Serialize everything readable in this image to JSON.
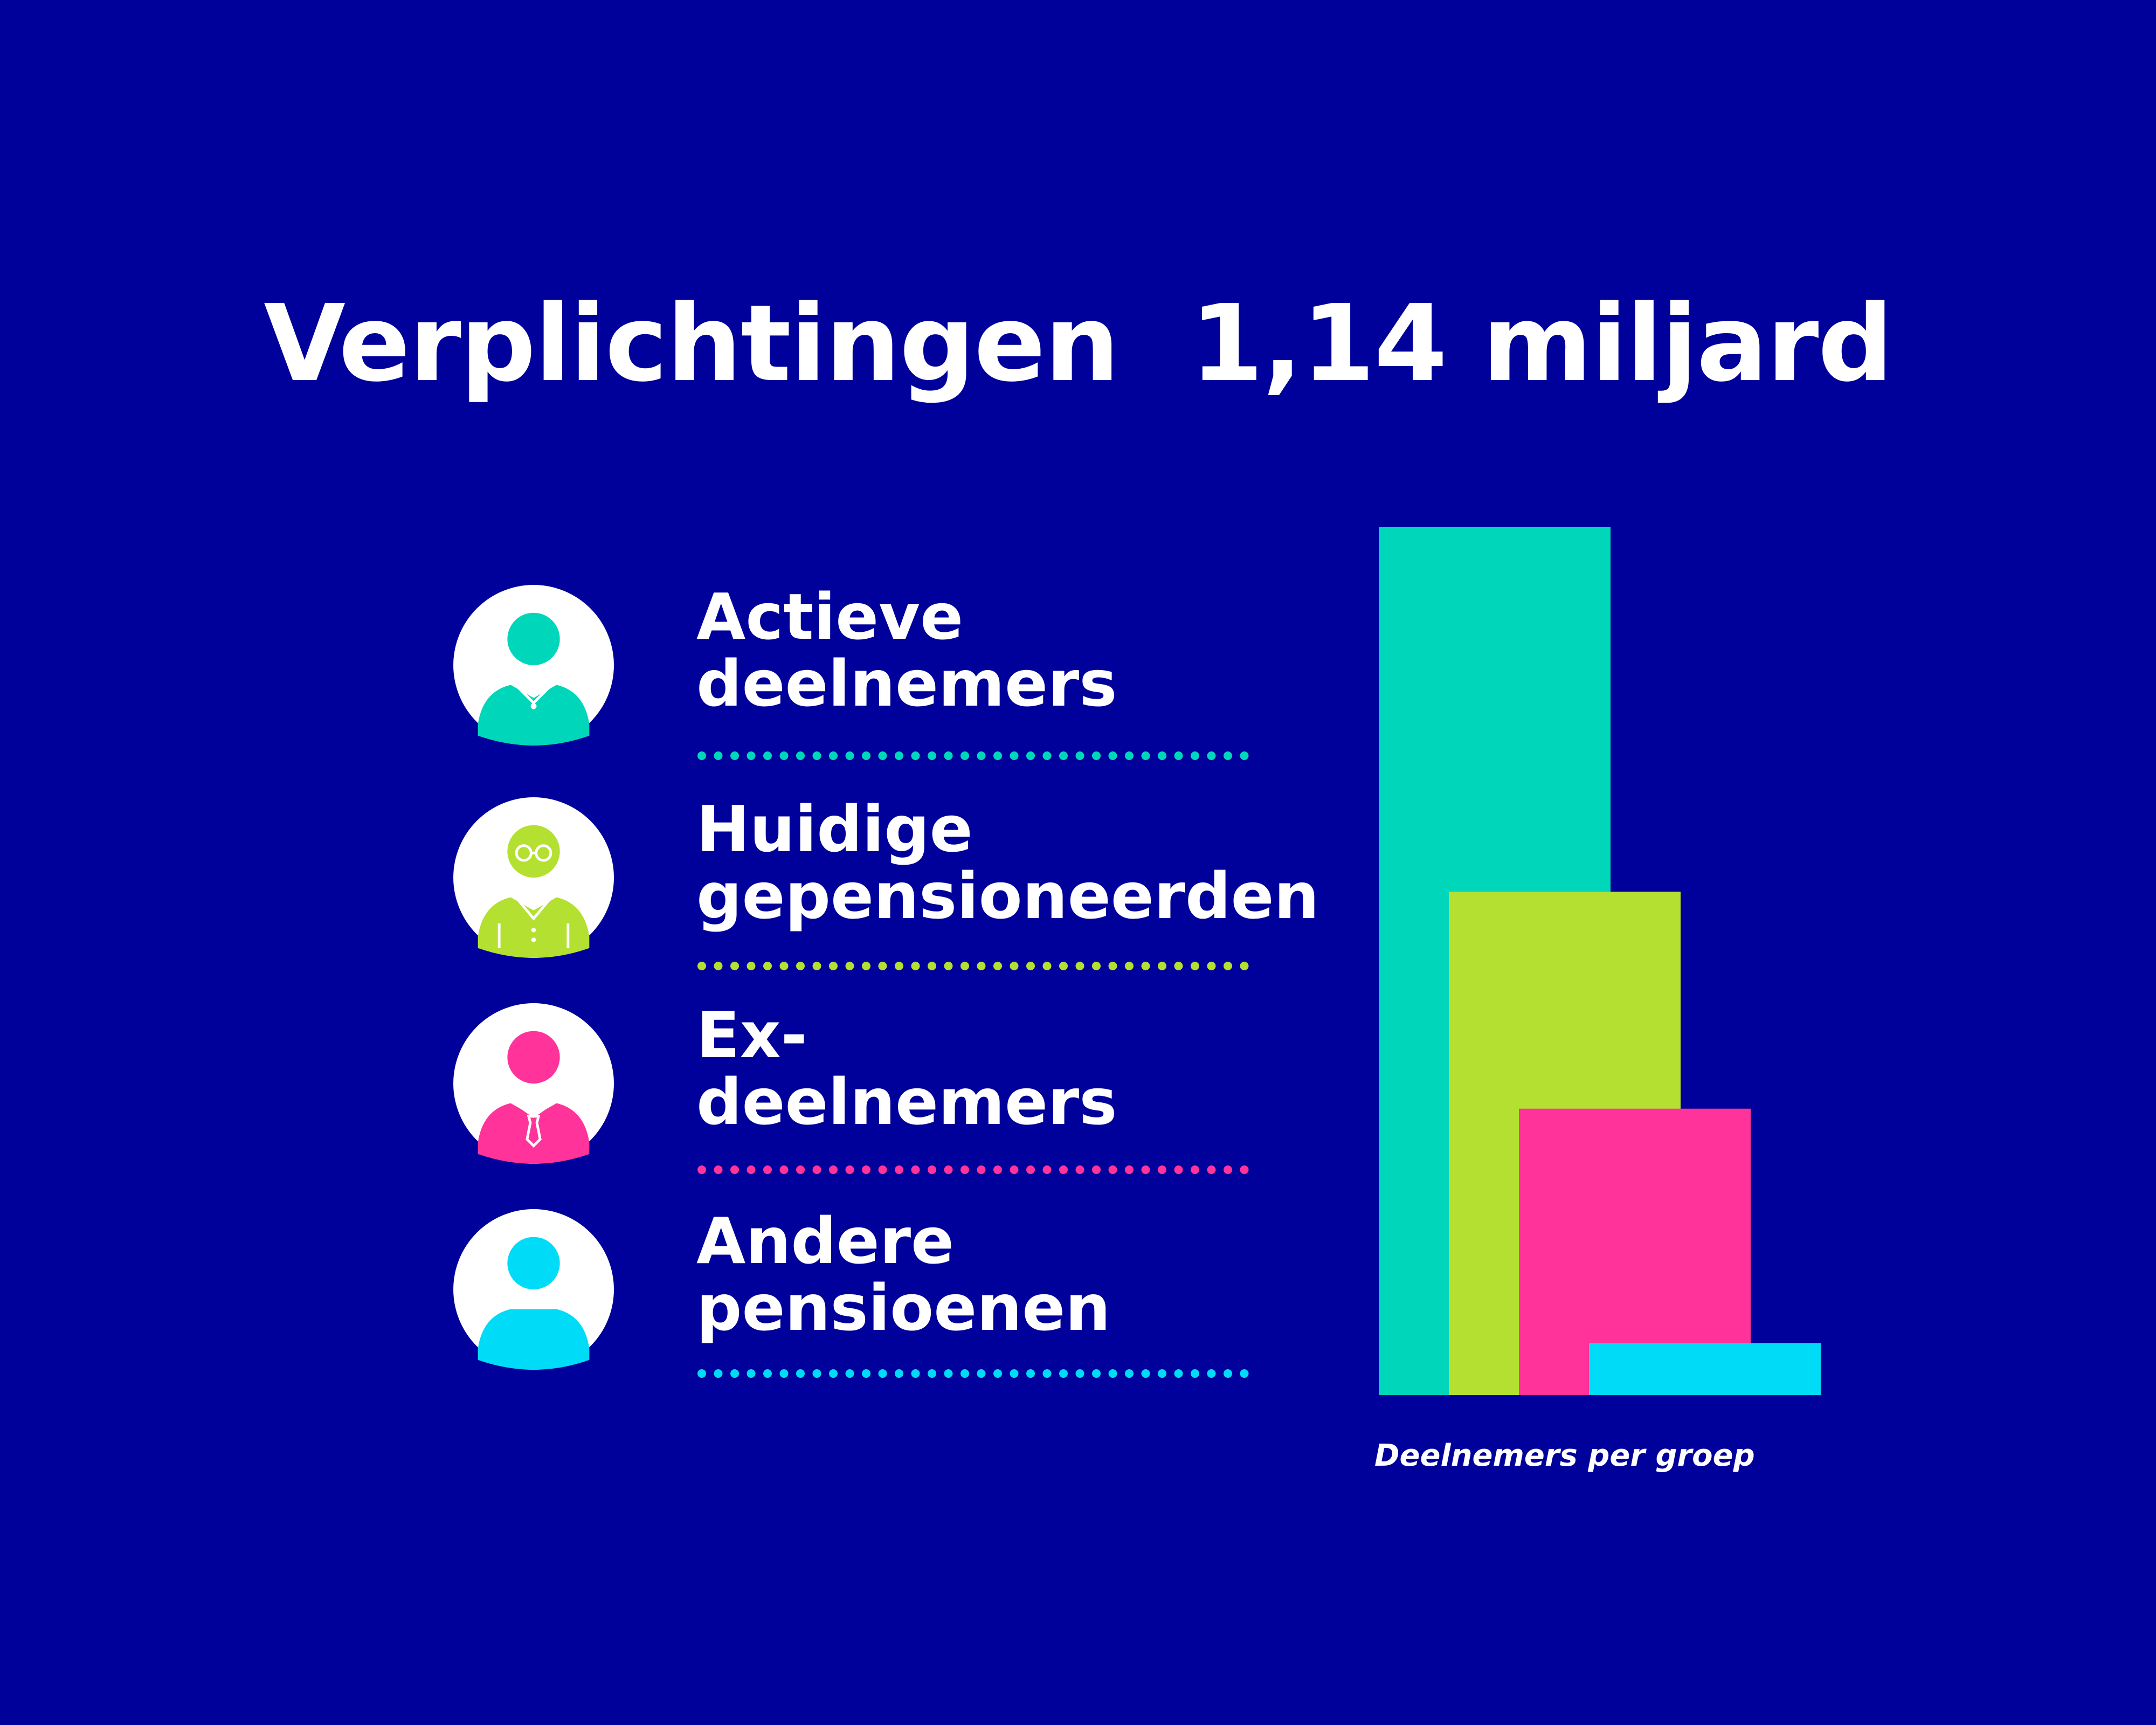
{
  "title": "Verplichtingen  1,14 miljard",
  "groups": [
    {
      "line1": "Actieve",
      "line2": "deelnemers",
      "color": "#00d6b9",
      "icon": "person-icon"
    },
    {
      "line1": "Huidige",
      "line2": "gepensioneerden",
      "color": "#b4e032",
      "icon": "retiree-icon"
    },
    {
      "line1": "Ex-",
      "line2": "deelnemers",
      "color": "#ff3399",
      "icon": "person-with-tie-icon"
    },
    {
      "line1": "Andere",
      "line2": "pensioenen",
      "color": "#00dcf7",
      "icon": "person-icon"
    }
  ],
  "chart_data": {
    "type": "bar",
    "categories": [
      "Actieve deelnemers",
      "Huidige gepensioneerden",
      "Ex-deelnemers",
      "Andere pensioenen"
    ],
    "values": [
      100,
      58,
      33,
      6
    ],
    "xlabel": "Deelnemers per groep",
    "ylabel": "",
    "ylim": [
      0,
      100
    ],
    "colors": [
      "#00d6b9",
      "#b4e032",
      "#ff3399",
      "#00dcf7"
    ],
    "grid": false,
    "overlapping": true
  }
}
